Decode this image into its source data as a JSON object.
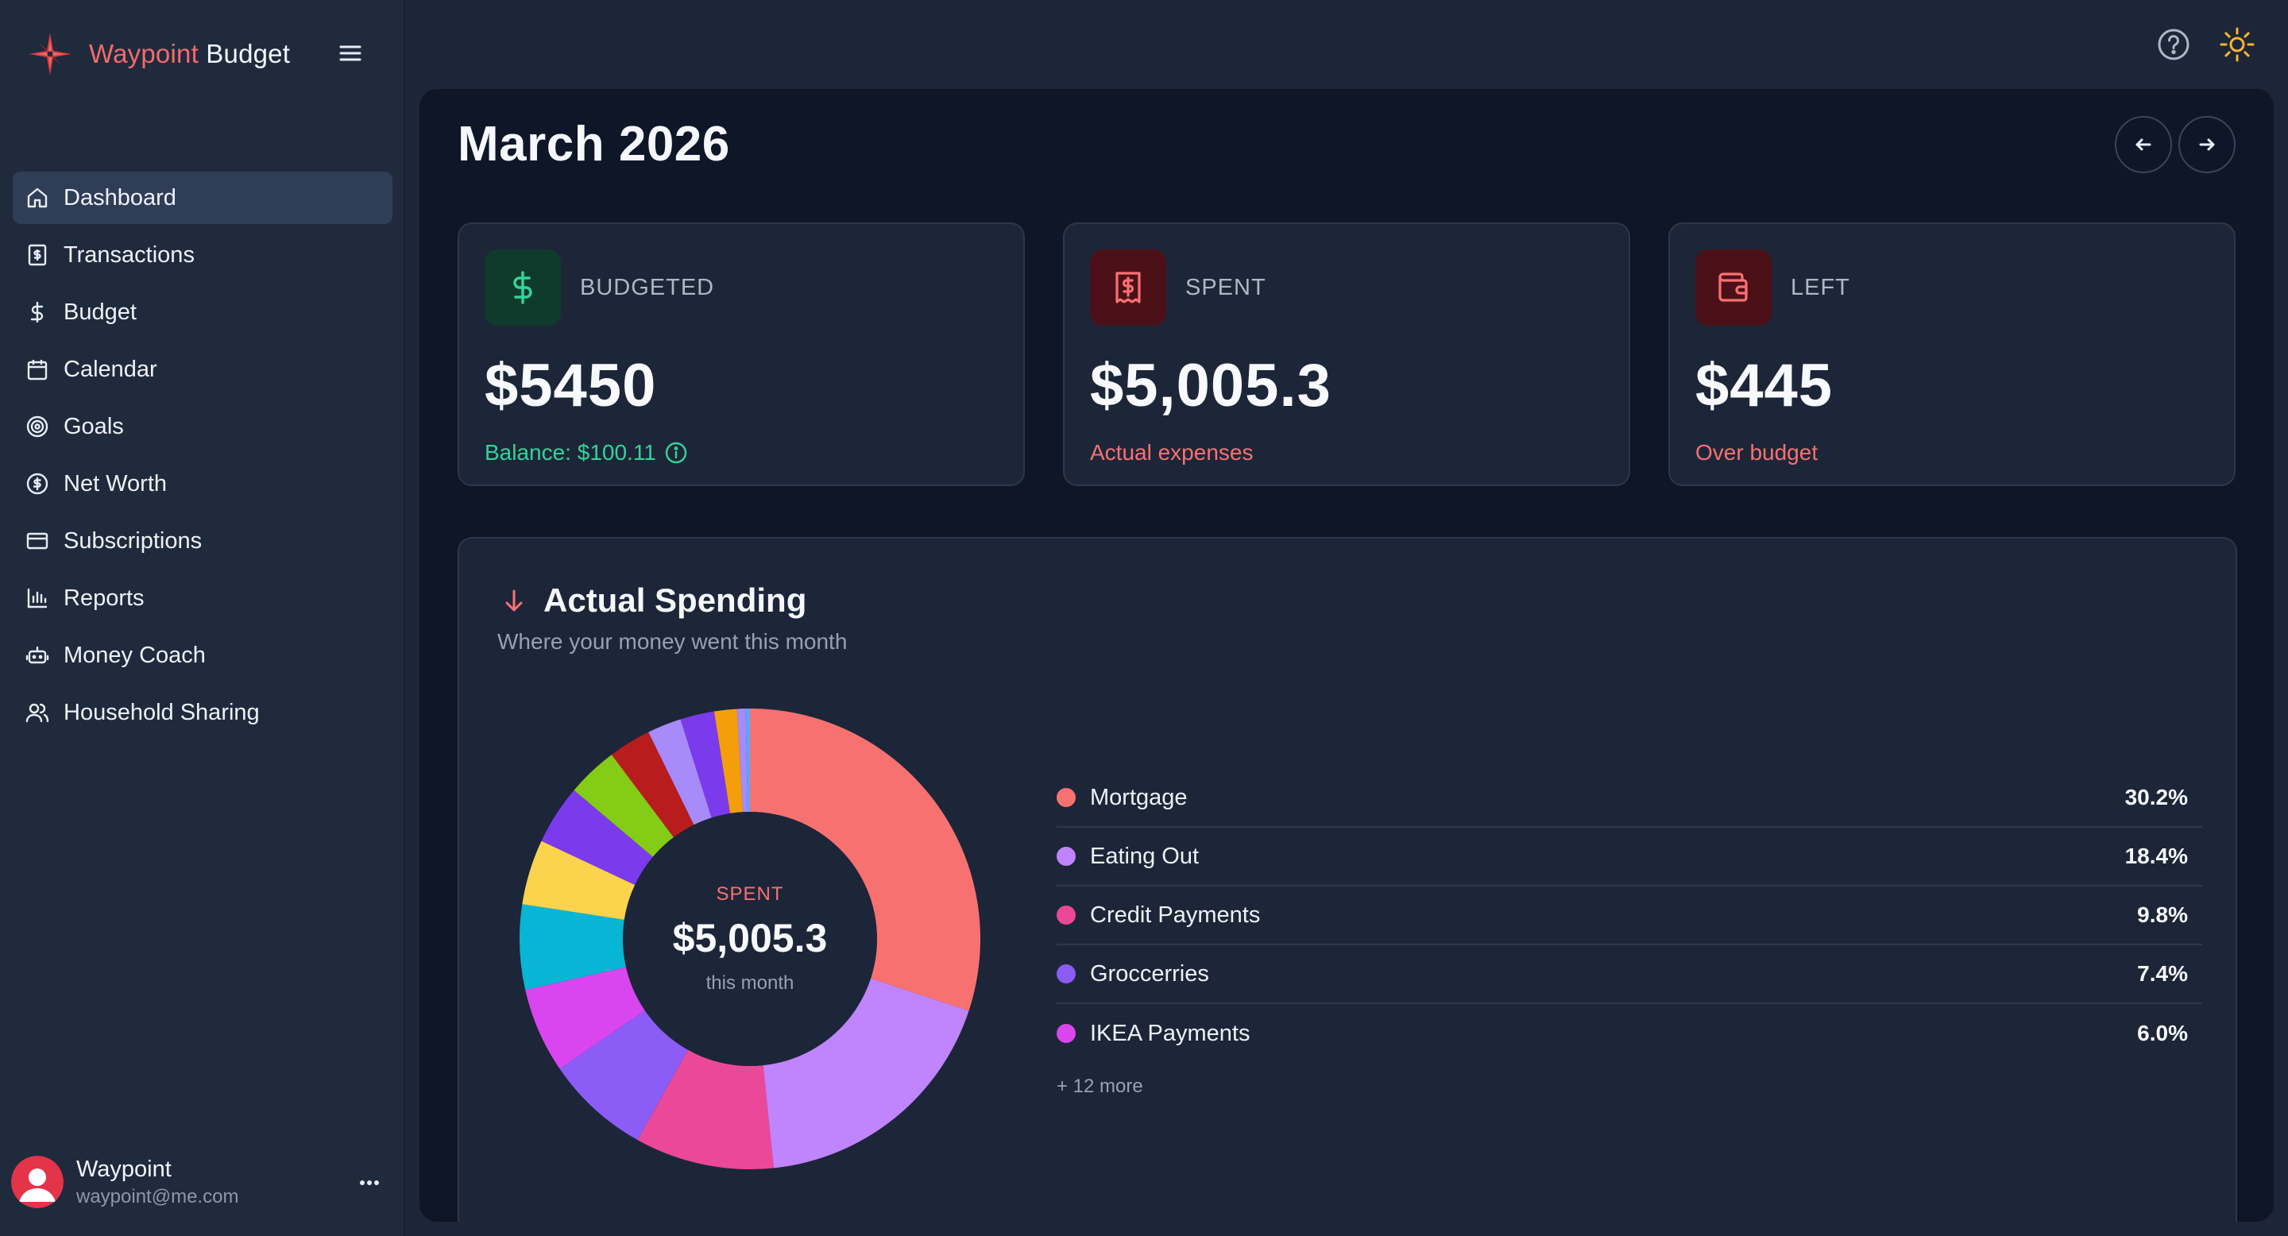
{
  "app": {
    "brand_part1": "Waypoint",
    "brand_part2": " Budget",
    "accent": "#f26b6b"
  },
  "sidebar": {
    "items": [
      {
        "label": "Dashboard",
        "icon": "home-icon",
        "active": true
      },
      {
        "label": "Transactions",
        "icon": "receipt-icon"
      },
      {
        "label": "Budget",
        "icon": "dollar-icon"
      },
      {
        "label": "Calendar",
        "icon": "calendar-icon"
      },
      {
        "label": "Goals",
        "icon": "target-icon"
      },
      {
        "label": "Net Worth",
        "icon": "coin-icon"
      },
      {
        "label": "Subscriptions",
        "icon": "credit-card-icon"
      },
      {
        "label": "Reports",
        "icon": "bar-chart-icon"
      },
      {
        "label": "Money Coach",
        "icon": "bot-icon"
      },
      {
        "label": "Household Sharing",
        "icon": "users-icon"
      }
    ],
    "user": {
      "name": "Waypoint",
      "email": "waypoint@me.com"
    }
  },
  "header": {
    "title": "March 2026"
  },
  "cards": {
    "budgeted": {
      "label": "BUDGETED",
      "value": "$5450",
      "sub": "Balance: $100.11",
      "color": "#34d399"
    },
    "spent": {
      "label": "SPENT",
      "value": "$5,005.3",
      "sub": "Actual expenses",
      "color": "#f87171"
    },
    "left": {
      "label": "LEFT",
      "value": "$445",
      "sub": "Over budget",
      "color": "#f87171"
    }
  },
  "spending": {
    "title": "Actual Spending",
    "subtitle": "Where your money went this month",
    "center_label": "SPENT",
    "center_value": "$5,005.3",
    "center_sub": "this month",
    "legend": [
      {
        "name": "Mortgage",
        "pct": "30.2%",
        "color": "#f87171"
      },
      {
        "name": "Eating Out",
        "pct": "18.4%",
        "color": "#c084fc"
      },
      {
        "name": "Credit Payments",
        "pct": "9.8%",
        "color": "#ec4899"
      },
      {
        "name": "Groccerries",
        "pct": "7.4%",
        "color": "#8b5cf6"
      },
      {
        "name": "IKEA Payments",
        "pct": "6.0%",
        "color": "#d946ef"
      }
    ],
    "more": "+ 12 more"
  },
  "chart_data": {
    "type": "pie",
    "categories": [
      "Mortgage",
      "Eating Out",
      "Credit Payments",
      "Groccerries",
      "IKEA Payments",
      "",
      "",
      "",
      "",
      "",
      "",
      "",
      "",
      "",
      "",
      "",
      ""
    ],
    "values": [
      30.2,
      18.4,
      9.8,
      7.4,
      6.0,
      6.0,
      4.6,
      4.2,
      3.6,
      3.0,
      2.4,
      2.4,
      1.6,
      0.6,
      0.3,
      0,
      0
    ],
    "colors": [
      "#f87171",
      "#c084fc",
      "#ec4899",
      "#8b5cf6",
      "#d946ef",
      "#06b6d4",
      "#fcd34d",
      "#7c3aed",
      "#84cc16",
      "#b91c1c",
      "#a78bfa",
      "#7c3aed",
      "#f59e0b",
      "#a78bfa",
      "#60a5fa",
      "#60a5fa",
      "#60a5fa"
    ]
  }
}
